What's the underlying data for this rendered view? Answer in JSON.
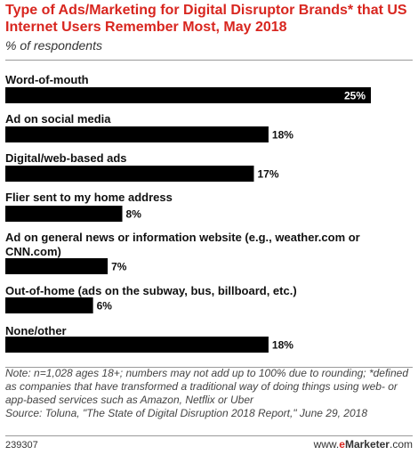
{
  "header": {
    "title": "Type of Ads/Marketing for Digital Disruptor Brands* that US Internet Users Remember Most, May 2018",
    "subtitle": "% of respondents"
  },
  "chart_data": {
    "type": "bar",
    "orientation": "horizontal",
    "categories": [
      "Word-of-mouth",
      "Ad on social media",
      "Digital/web-based ads",
      "Flier sent to my home address",
      "Ad on general news or information website (e.g., weather.com or CNN.com)",
      "Out-of-home (ads on the subway, bus, billboard, etc.)",
      "None/other"
    ],
    "values": [
      25,
      18,
      17,
      8,
      7,
      6,
      18
    ],
    "value_labels": [
      "25%",
      "18%",
      "17%",
      "8%",
      "7%",
      "6%",
      "18%"
    ],
    "xlim": [
      0,
      25
    ],
    "grid": false,
    "bar_color": "#000000"
  },
  "footer": {
    "note": "Note: n=1,028 ages 18+; numbers may not add up to 100% due to rounding; *defined as companies that have transformed a traditional way of doing things using web- or app-based services such as Amazon, Netflix or Uber",
    "source": "Source: Toluna, \"The State of Digital Disruption 2018 Report,\" June 29, 2018",
    "chart_id": "239307",
    "brand_www": "www.",
    "brand_e": "e",
    "brand_rest": "Marketer",
    "brand_tld": ".com"
  }
}
